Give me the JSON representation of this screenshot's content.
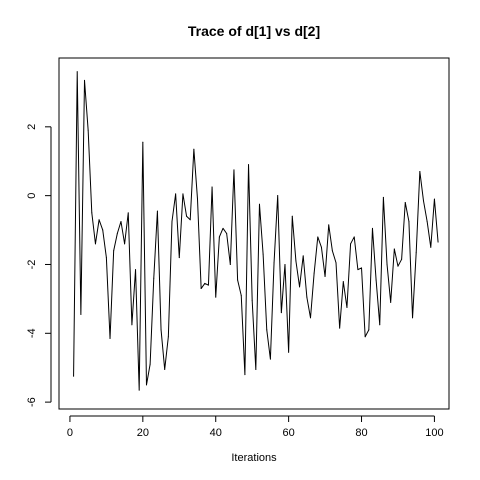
{
  "chart_data": {
    "type": "line",
    "title": "Trace of d[1] vs d[2]",
    "xlabel": "Iterations",
    "ylabel": "",
    "xlim": [
      -3,
      104
    ],
    "ylim": [
      -6.2,
      4.0
    ],
    "x_ticks": [
      0,
      20,
      40,
      60,
      80,
      100
    ],
    "y_ticks": [
      -6,
      -4,
      -2,
      0,
      2
    ],
    "x_tick_labels": [
      "0",
      "20",
      "40",
      "60",
      "80",
      "100"
    ],
    "y_tick_labels": [
      "-6",
      "-4",
      "-2",
      "0",
      "2"
    ],
    "grid": false,
    "legend": "none",
    "series": [
      {
        "x": [
          1,
          2,
          3,
          4,
          5,
          6,
          7,
          8,
          9,
          10,
          11,
          12,
          13,
          14,
          15,
          16,
          17,
          18,
          19,
          20,
          21,
          22,
          23,
          24,
          25,
          26,
          27,
          28,
          29,
          30,
          31,
          32,
          33,
          34,
          35,
          36,
          37,
          38,
          39,
          40,
          41,
          42,
          43,
          44,
          45,
          46,
          47,
          48,
          49,
          50,
          51,
          52,
          53,
          54,
          55,
          56,
          57,
          58,
          59,
          60,
          61,
          62,
          63,
          64,
          65,
          66,
          67,
          68,
          69,
          70,
          71,
          72,
          73,
          74,
          75,
          76,
          77,
          78,
          79,
          80,
          81,
          82,
          83,
          84,
          85,
          86,
          87,
          88,
          89,
          90,
          91,
          92,
          93,
          94,
          95,
          96,
          97,
          98,
          99,
          100,
          101
        ],
        "values": [
          -5.25,
          3.6,
          -3.45,
          3.35,
          1.9,
          -0.5,
          -1.4,
          -0.7,
          -1.0,
          -1.8,
          -4.15,
          -1.6,
          -1.1,
          -0.75,
          -1.4,
          -0.5,
          -3.75,
          -2.15,
          -5.65,
          1.55,
          -5.5,
          -4.9,
          -2.4,
          -0.45,
          -3.9,
          -5.05,
          -4.1,
          -0.75,
          0.05,
          -1.8,
          0.05,
          -0.6,
          -0.7,
          1.35,
          -0.1,
          -2.7,
          -2.55,
          -2.6,
          0.25,
          -2.95,
          -1.2,
          -0.95,
          -1.1,
          -2.0,
          0.75,
          -2.45,
          -2.9,
          -5.2,
          0.9,
          -3.05,
          -5.05,
          -0.25,
          -1.7,
          -3.9,
          -4.75,
          -1.95,
          0.0,
          -3.4,
          -2.0,
          -4.55,
          -0.6,
          -1.9,
          -2.65,
          -1.75,
          -2.95,
          -3.55,
          -2.25,
          -1.2,
          -1.5,
          -2.35,
          -0.85,
          -1.6,
          -1.95,
          -3.85,
          -2.5,
          -3.25,
          -1.4,
          -1.2,
          -2.15,
          -2.1,
          -4.1,
          -3.9,
          -0.95,
          -2.45,
          -3.75,
          -0.05,
          -2.0,
          -3.1,
          -1.55,
          -2.05,
          -1.85,
          -0.2,
          -0.75,
          -3.55,
          -1.65,
          0.7,
          -0.15,
          -0.75,
          -1.5,
          -0.1,
          -1.35
        ]
      }
    ]
  }
}
